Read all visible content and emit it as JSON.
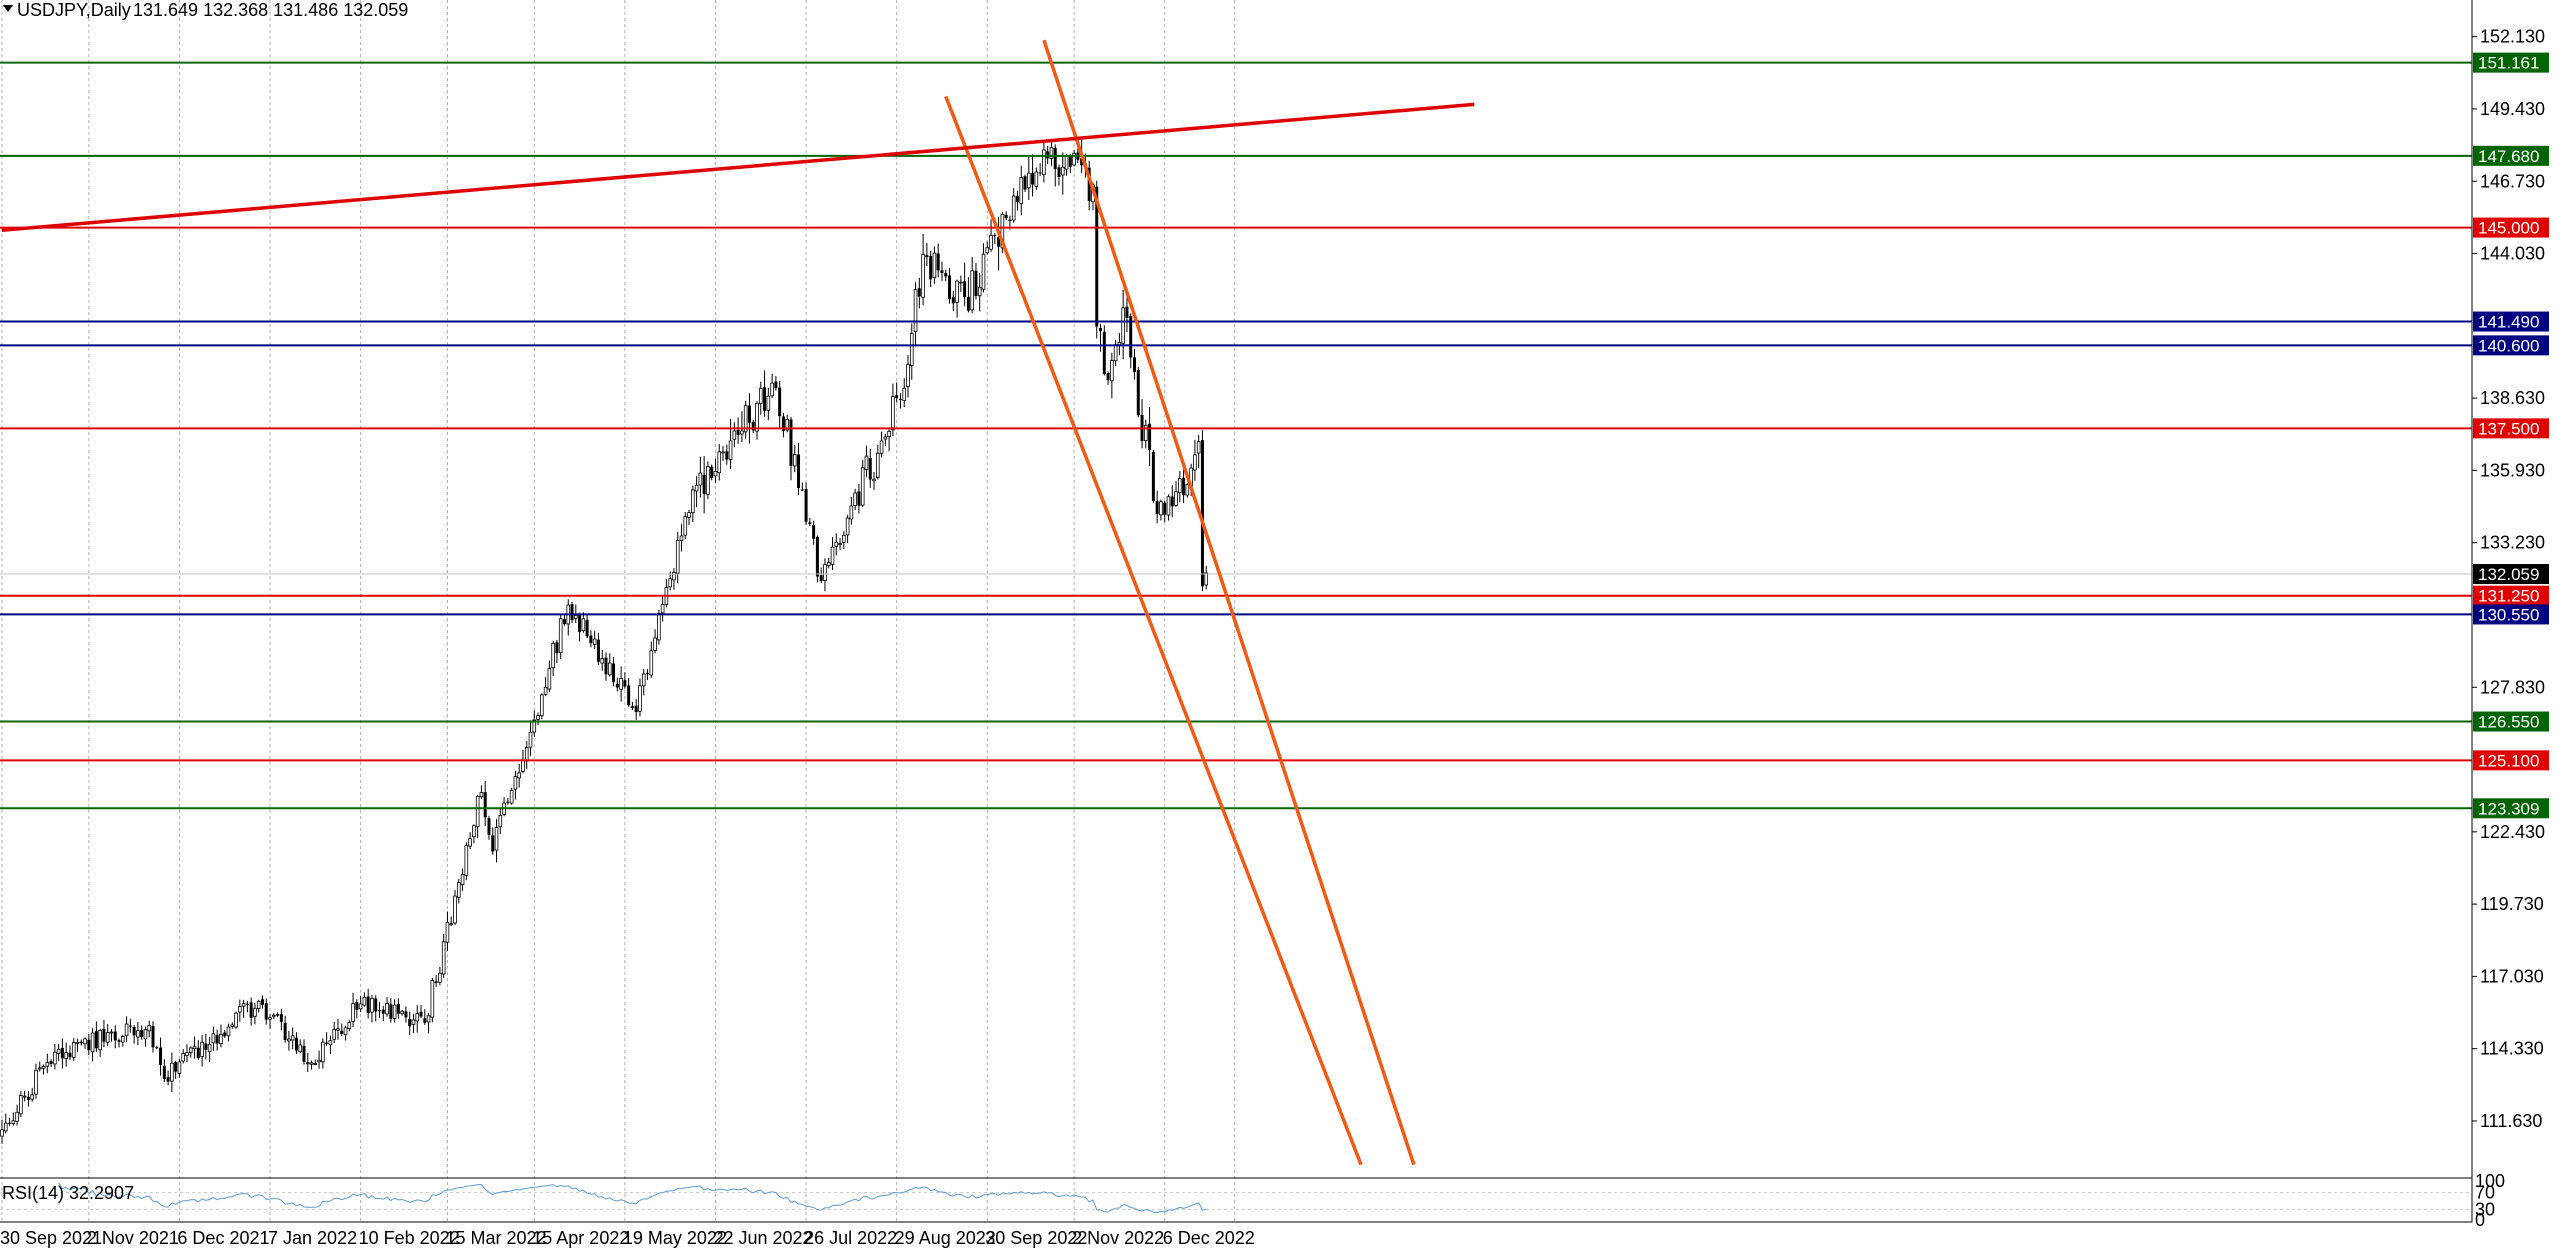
{
  "header": {
    "symbol": "USDJPY,Daily",
    "ohlc": "131.649 132.368 131.486 132.059"
  },
  "colors": {
    "background": "#ffffff",
    "grid": "#b0b0b0",
    "candle": "#000000",
    "support_green": "#006400",
    "resistance_red": "#e00000",
    "navy": "#000080",
    "channel_orange": "#f05a14",
    "trend_red": "#e00000",
    "rsi_line": "#5b9bd5",
    "price_badge": "#000000"
  },
  "chart_data": {
    "type": "candlestick",
    "title": "USDJPY,Daily",
    "price_axis_labels": [
      "152.130",
      "149.430",
      "146.730",
      "144.030",
      "138.630",
      "135.930",
      "133.230",
      "127.830",
      "122.430",
      "119.730",
      "117.030",
      "114.330",
      "111.630"
    ],
    "date_axis_labels": [
      "30 Sep 2021",
      "2 Nov 2021",
      "6 Dec 2021",
      "7 Jan 2022",
      "10 Feb 2022",
      "15 Mar 2022",
      "15 Apr 2022",
      "19 May 2022",
      "22 Jun 2022",
      "26 Jul 2022",
      "29 Aug 2022",
      "30 Sep 2022",
      "2 Nov 2022",
      "6 Dec 2022"
    ],
    "ylim": [
      109.5,
      153.5
    ],
    "current_price": {
      "value": 132.059,
      "label": "132.059"
    },
    "horizontal_levels": [
      {
        "value": 151.161,
        "label": "151.161",
        "color": "green"
      },
      {
        "value": 147.68,
        "label": "147.680",
        "color": "green"
      },
      {
        "value": 145.0,
        "label": "145.000",
        "color": "red"
      },
      {
        "value": 141.49,
        "label": "141.490",
        "color": "navy"
      },
      {
        "value": 140.6,
        "label": "140.600",
        "color": "navy"
      },
      {
        "value": 137.5,
        "label": "137.500",
        "color": "red"
      },
      {
        "value": 131.25,
        "label": "131.250",
        "color": "red"
      },
      {
        "value": 130.55,
        "label": "130.550",
        "color": "navy"
      },
      {
        "value": 126.55,
        "label": "126.550",
        "color": "green"
      },
      {
        "value": 125.1,
        "label": "125.100",
        "color": "red"
      },
      {
        "value": 123.309,
        "label": "123.309",
        "color": "green"
      }
    ],
    "trend_lines": [
      {
        "name": "upper-channel",
        "color": "orange",
        "from": {
          "date": "2022-10-21",
          "price": 152.0
        },
        "to": {
          "date": "2023-03-08",
          "price": 110.0
        }
      },
      {
        "name": "lower-channel",
        "color": "orange",
        "from": {
          "date": "2022-09-15",
          "price": 149.9
        },
        "to": {
          "date": "2023-02-16",
          "price": 110.0
        }
      },
      {
        "name": "rising-resistance",
        "color": "red",
        "from": {
          "date": "2021-09-30",
          "price": 144.9
        },
        "to": {
          "date": "2023-03-30",
          "price": 149.6
        }
      }
    ],
    "anchor_closes": [
      {
        "date": "2021-09-30",
        "close": 111.3
      },
      {
        "date": "2021-10-20",
        "close": 114.2
      },
      {
        "date": "2021-11-24",
        "close": 115.2
      },
      {
        "date": "2021-11-30",
        "close": 113.2
      },
      {
        "date": "2022-01-04",
        "close": 116.1
      },
      {
        "date": "2022-01-24",
        "close": 113.8
      },
      {
        "date": "2022-02-10",
        "close": 116.0
      },
      {
        "date": "2022-03-07",
        "close": 115.3
      },
      {
        "date": "2022-03-28",
        "close": 123.9
      },
      {
        "date": "2022-03-31",
        "close": 121.7
      },
      {
        "date": "2022-04-28",
        "close": 130.9
      },
      {
        "date": "2022-05-24",
        "close": 126.9
      },
      {
        "date": "2022-06-14",
        "close": 135.2
      },
      {
        "date": "2022-07-14",
        "close": 139.0
      },
      {
        "date": "2022-08-01",
        "close": 131.8
      },
      {
        "date": "2022-08-31",
        "close": 139.0
      },
      {
        "date": "2022-09-07",
        "close": 144.0
      },
      {
        "date": "2022-09-22",
        "close": 142.4
      },
      {
        "date": "2022-10-21",
        "close": 147.9
      },
      {
        "date": "2022-11-09",
        "close": 146.6
      },
      {
        "date": "2022-11-10",
        "close": 141.3
      },
      {
        "date": "2022-11-15",
        "close": 139.3
      },
      {
        "date": "2022-11-21",
        "close": 142.0
      },
      {
        "date": "2022-12-02",
        "close": 134.3
      },
      {
        "date": "2022-12-14",
        "close": 135.4
      },
      {
        "date": "2022-12-19",
        "close": 137.0
      },
      {
        "date": "2022-12-20",
        "close": 131.6
      },
      {
        "date": "2022-12-21",
        "close": 132.1
      }
    ],
    "rsi": {
      "label": "RSI(14) 32.2907",
      "value": 32.2907,
      "period": 14,
      "levels": [
        "100",
        "70",
        "30",
        "0"
      ]
    }
  }
}
